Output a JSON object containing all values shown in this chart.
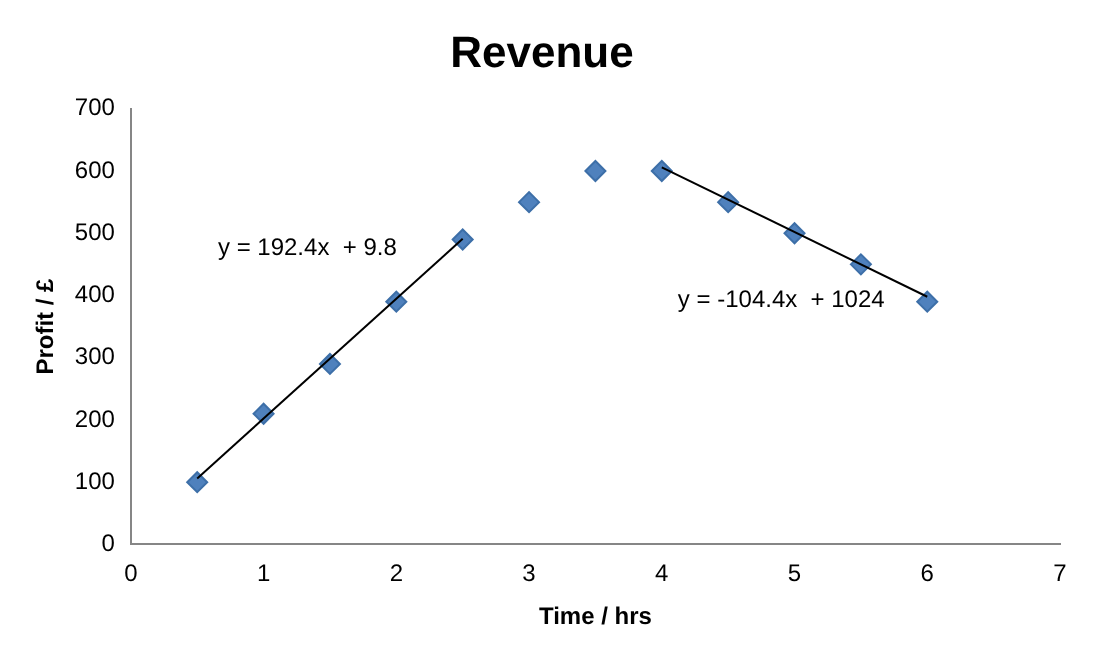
{
  "chart_data": {
    "type": "scatter",
    "title": "Revenue",
    "xlabel": "Time / hrs",
    "ylabel": "Profit / £",
    "xlim": [
      0,
      7
    ],
    "xticks": [
      0,
      1,
      2,
      3,
      4,
      5,
      6,
      7
    ],
    "ylim": [
      0,
      700
    ],
    "yticks": [
      0,
      100,
      200,
      300,
      400,
      500,
      600,
      700
    ],
    "grid": false,
    "legend": false,
    "marker": "diamond",
    "series": [
      {
        "type": "scatter",
        "color": "#4f81bd",
        "x": [
          0.5,
          1,
          1.5,
          2,
          2.5,
          3,
          3.5,
          4,
          4.5,
          5,
          5.5,
          6
        ],
        "values": [
          100,
          210,
          290,
          390,
          490,
          550,
          600,
          600,
          550,
          500,
          450,
          390
        ]
      },
      {
        "type": "line",
        "color": "#000000",
        "marker": "none",
        "x": [
          0.5,
          2.5
        ],
        "values": [
          106,
          491
        ]
      },
      {
        "type": "line",
        "color": "#000000",
        "marker": "none",
        "x": [
          4,
          6
        ],
        "values": [
          606,
          398
        ]
      }
    ],
    "annotations": [
      "y = 192.4x  + 9.8",
      "y = -104.4x  + 1024"
    ]
  }
}
